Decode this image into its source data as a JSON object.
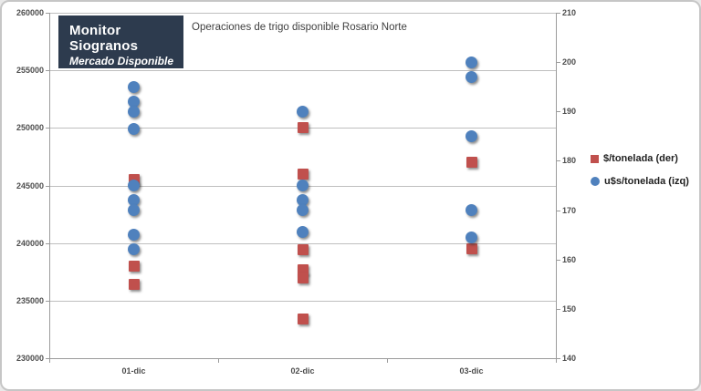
{
  "branding": {
    "title": "Monitor Siogranos",
    "subtitle": "Mercado Disponible",
    "bg_color": "#2d3b4e"
  },
  "chart_title": "Operaciones de trigo disponible Rosario Norte",
  "legend": {
    "items": [
      {
        "label": "$/tonelada (der)",
        "marker": "square",
        "color": "#c0504d"
      },
      {
        "label": "u$s/tonelada (izq)",
        "marker": "circle",
        "color": "#4f81bd"
      }
    ]
  },
  "chart_data": {
    "type": "scatter",
    "title": "Operaciones de trigo disponible Rosario Norte",
    "categories": [
      "01-dic",
      "02-dic",
      "03-dic"
    ],
    "left_axis": {
      "min": 230000,
      "max": 260000,
      "step": 5000,
      "tick_labels": [
        "260000",
        "255000",
        "250000",
        "245000",
        "240000",
        "235000",
        "230000"
      ]
    },
    "right_axis": {
      "min": 140,
      "max": 210,
      "step": 10,
      "tick_labels": [
        "210",
        "200",
        "190",
        "180",
        "170",
        "160",
        "150",
        "140"
      ]
    },
    "grid": "horizontal-only",
    "legend_position": "right",
    "series": [
      {
        "name": "$/tonelada (der)",
        "axis": "left",
        "marker": "square",
        "color": "#c0504d",
        "values_by_category": {
          "01-dic": [
            245500,
            238000,
            236400
          ],
          "02-dic": [
            250000,
            246000,
            239400,
            237700,
            237000,
            233400
          ],
          "03-dic": [
            247000,
            239500
          ]
        }
      },
      {
        "name": "u$s/tonelada (izq)",
        "axis": "right",
        "marker": "circle",
        "color": "#4f81bd",
        "values_by_category": {
          "01-dic": [
            195,
            192,
            190,
            186.5,
            175,
            172,
            170,
            165,
            162
          ],
          "02-dic": [
            190,
            175,
            172,
            170,
            165.5
          ],
          "03-dic": [
            200,
            197,
            185,
            170,
            164.5
          ]
        }
      }
    ]
  }
}
